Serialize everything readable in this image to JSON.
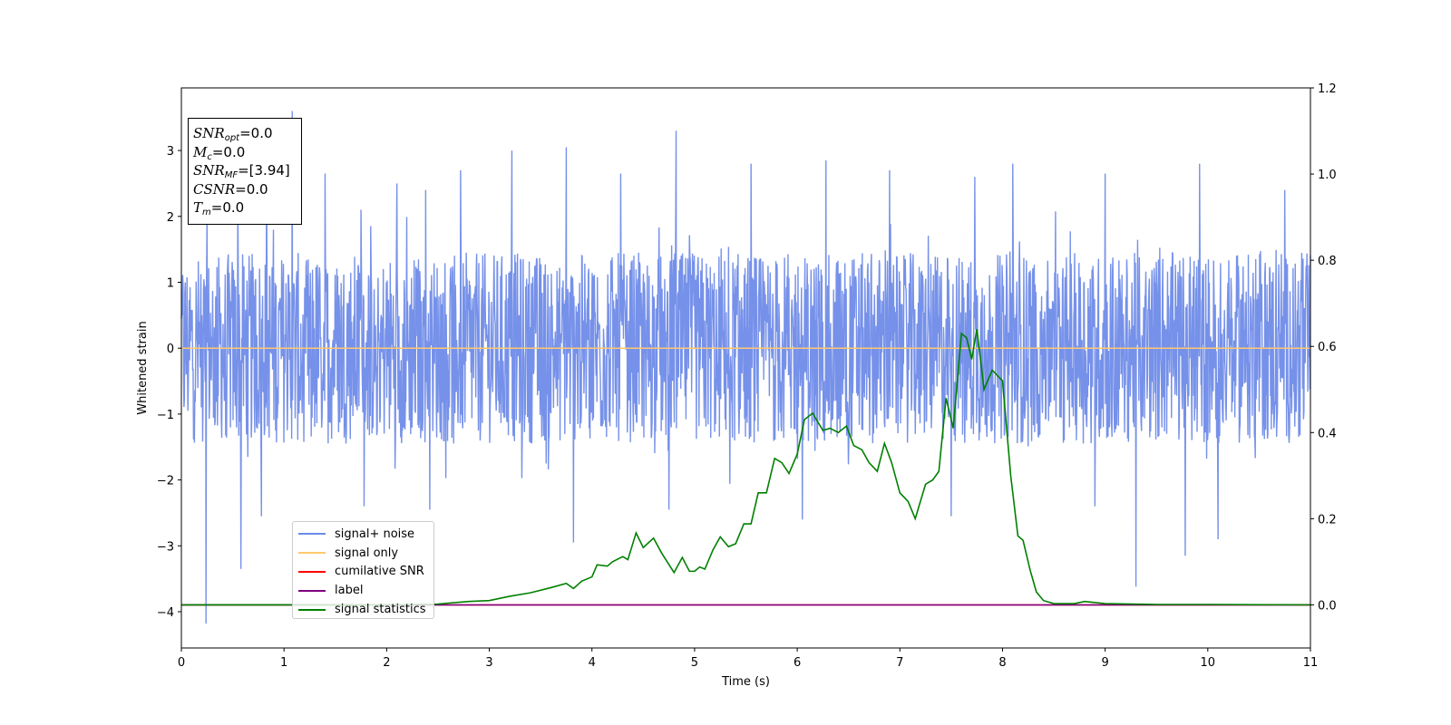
{
  "chart_data": {
    "type": "line",
    "xlabel": "Time (s)",
    "ylabel": "Whitened strain",
    "xlim": [
      0,
      11
    ],
    "ylim_left": [
      -4.55,
      3.95
    ],
    "ylim_right": [
      -0.1,
      1.2
    ],
    "x_ticks": [
      "0",
      "1",
      "2",
      "3",
      "4",
      "5",
      "6",
      "7",
      "8",
      "9",
      "10",
      "11"
    ],
    "y_left_ticks": [
      "3",
      "2",
      "1",
      "0",
      "−1",
      "−2",
      "−3",
      "−4"
    ],
    "y_left_tick_values": [
      3,
      2,
      1,
      0,
      -1,
      -2,
      -3,
      -4
    ],
    "y_right_ticks": [
      "1.2",
      "1.0",
      "0.8",
      "0.6",
      "0.4",
      "0.2",
      "0.0"
    ],
    "y_right_tick_values": [
      1.2,
      1.0,
      0.8,
      0.6,
      0.4,
      0.2,
      0.0
    ],
    "colors": {
      "signal_noise": "#6f8be8",
      "signal_only": "#ffc86e",
      "cumulative_snr": "#ff0000",
      "label": "#800080",
      "signal_statistics": "#008000"
    },
    "series": [
      {
        "name": "signal+ noise",
        "axis": "left",
        "description_values": "whitened strain noise, approx. uniform amplitude",
        "band_typical": [
          -1.45,
          1.45
        ],
        "peaks_high": [
          [
            0.25,
            2.0
          ],
          [
            0.55,
            2.3
          ],
          [
            0.83,
            2.9
          ],
          [
            1.08,
            3.6
          ],
          [
            1.4,
            2.65
          ],
          [
            1.75,
            2.1
          ],
          [
            2.1,
            2.5
          ],
          [
            2.38,
            2.4
          ],
          [
            2.72,
            2.7
          ],
          [
            3.22,
            3.0
          ],
          [
            3.75,
            3.05
          ],
          [
            4.28,
            2.65
          ],
          [
            4.82,
            3.3
          ],
          [
            5.55,
            2.8
          ],
          [
            6.28,
            2.85
          ],
          [
            6.9,
            2.7
          ],
          [
            7.73,
            2.6
          ],
          [
            8.1,
            2.8
          ],
          [
            9.0,
            2.65
          ],
          [
            9.92,
            2.8
          ],
          [
            10.75,
            2.4
          ]
        ],
        "peaks_low": [
          [
            0.24,
            -4.18
          ],
          [
            0.58,
            -3.35
          ],
          [
            0.78,
            -2.55
          ],
          [
            1.78,
            -2.4
          ],
          [
            2.42,
            -2.45
          ],
          [
            3.82,
            -2.95
          ],
          [
            4.75,
            -2.45
          ],
          [
            6.05,
            -2.6
          ],
          [
            7.5,
            -2.55
          ],
          [
            8.9,
            -2.4
          ],
          [
            9.3,
            -3.62
          ],
          [
            9.78,
            -3.15
          ],
          [
            10.1,
            -2.9
          ]
        ]
      },
      {
        "name": "signal only",
        "axis": "left",
        "x": [
          0,
          11
        ],
        "values": [
          0,
          0
        ]
      },
      {
        "name": "cumilative SNR",
        "axis": "right",
        "x": [
          0,
          11
        ],
        "values": [
          0,
          0
        ]
      },
      {
        "name": "label",
        "axis": "right",
        "x": [
          0,
          11
        ],
        "values": [
          0,
          0
        ]
      },
      {
        "name": "signal statistics",
        "axis": "right",
        "x": [
          0,
          1.0,
          2.0,
          2.5,
          2.8,
          3.0,
          3.2,
          3.4,
          3.6,
          3.75,
          3.82,
          3.9,
          4.0,
          4.05,
          4.15,
          4.2,
          4.3,
          4.35,
          4.43,
          4.5,
          4.6,
          4.68,
          4.8,
          4.88,
          4.95,
          5.0,
          5.05,
          5.1,
          5.18,
          5.25,
          5.33,
          5.4,
          5.48,
          5.55,
          5.62,
          5.7,
          5.78,
          5.85,
          5.92,
          6.0,
          6.07,
          6.15,
          6.25,
          6.32,
          6.4,
          6.48,
          6.55,
          6.63,
          6.7,
          6.78,
          6.85,
          6.92,
          7.0,
          7.08,
          7.15,
          7.25,
          7.32,
          7.38,
          7.45,
          7.52,
          7.6,
          7.65,
          7.7,
          7.75,
          7.82,
          7.9,
          8.0,
          8.08,
          8.15,
          8.2,
          8.27,
          8.33,
          8.4,
          8.5,
          8.7,
          8.8,
          9.0,
          9.5,
          10.0,
          11.0
        ],
        "values": [
          0.0,
          0.0,
          0.0,
          0.002,
          0.008,
          0.01,
          0.02,
          0.028,
          0.04,
          0.05,
          0.038,
          0.055,
          0.065,
          0.093,
          0.09,
          0.1,
          0.112,
          0.105,
          0.167,
          0.133,
          0.155,
          0.12,
          0.075,
          0.11,
          0.078,
          0.078,
          0.088,
          0.083,
          0.128,
          0.158,
          0.135,
          0.142,
          0.188,
          0.188,
          0.26,
          0.26,
          0.34,
          0.33,
          0.305,
          0.35,
          0.43,
          0.445,
          0.405,
          0.41,
          0.4,
          0.415,
          0.37,
          0.36,
          0.33,
          0.31,
          0.375,
          0.33,
          0.26,
          0.24,
          0.2,
          0.28,
          0.29,
          0.31,
          0.48,
          0.41,
          0.63,
          0.62,
          0.57,
          0.64,
          0.5,
          0.545,
          0.52,
          0.3,
          0.16,
          0.15,
          0.08,
          0.03,
          0.01,
          0.003,
          0.003,
          0.008,
          0.003,
          0.001,
          0.001,
          0.0
        ]
      }
    ],
    "legend": {
      "placement": "lower-left",
      "entries": [
        "signal+ noise",
        "signal only",
        "cumilative SNR",
        "label",
        "signal statistics"
      ]
    },
    "info_box": {
      "placement": "top-left",
      "rows": [
        {
          "base": "SNR",
          "sub": "opt",
          "rest": "=0.0"
        },
        {
          "base": "M",
          "sub": "c",
          "rest": "=0.0"
        },
        {
          "base": "SNR",
          "sub": "MF",
          "rest": "=[3.94]"
        },
        {
          "base": "CSNR",
          "sub": "",
          "rest": "=0.0"
        },
        {
          "base": "T",
          "sub": "m",
          "rest": "=0.0"
        }
      ]
    }
  }
}
